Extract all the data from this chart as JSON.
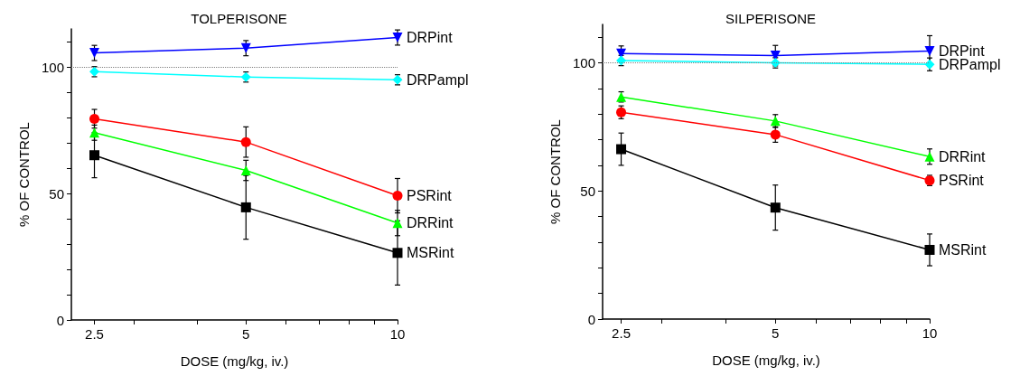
{
  "chart_data": [
    {
      "type": "line",
      "title": "TOLPERISONE",
      "xlabel": "DOSE (mg/kg, iv.)",
      "ylabel": "% OF CONTROL",
      "log": "x",
      "grid": false,
      "legend": false,
      "x": [
        2.5,
        5,
        10
      ],
      "xlim": [
        2.25,
        10
      ],
      "xticks": [
        2.5,
        5,
        10,
        {
          "value": 3,
          "label": null
        },
        {
          "value": 4,
          "label": null
        },
        {
          "value": 6,
          "label": null
        },
        {
          "value": 7,
          "label": null
        },
        {
          "value": 8,
          "label": null
        },
        {
          "value": 9,
          "label": null
        }
      ],
      "ylim": [
        0,
        115
      ],
      "yticks": [
        0,
        50,
        100,
        {
          "value": 10,
          "label": null
        },
        {
          "value": 20,
          "label": null
        },
        {
          "value": 30,
          "label": null
        },
        {
          "value": 40,
          "label": null
        },
        {
          "value": 60,
          "label": null
        },
        {
          "value": 70,
          "label": null
        },
        {
          "value": 80,
          "label": null
        },
        {
          "value": 90,
          "label": null
        },
        {
          "value": 110,
          "label": null
        }
      ],
      "ref_lines": [
        {
          "axis": "y",
          "value": 100,
          "color": "#808080",
          "line_style": "dotted"
        }
      ],
      "series": [
        {
          "name": "DRPint",
          "color": "#0000ff",
          "marker": "triangle-down",
          "values": [
            105.5,
            107.4,
            111.6
          ],
          "errors": [
            3,
            3,
            3
          ]
        },
        {
          "name": "DRPampl",
          "color": "#00ffff",
          "marker": "diamond",
          "values": [
            98.1,
            96.0,
            94.9
          ],
          "errors": [
            2,
            2,
            2
          ]
        },
        {
          "name": "PSRint",
          "color": "#ff0000",
          "marker": "circle",
          "values": [
            79.5,
            70.3,
            49.1
          ],
          "errors": [
            3.7,
            6,
            6.8
          ]
        },
        {
          "name": "DRRint",
          "color": "#00ff00",
          "marker": "triangle",
          "values": [
            74.0,
            59.1,
            38.3
          ],
          "errors": [
            3,
            4,
            5
          ]
        },
        {
          "name": "MSRint",
          "color": "#000000",
          "marker": "square",
          "values": [
            65.1,
            44.5,
            26.5
          ],
          "errors": [
            8.9,
            12.6,
            12.7
          ]
        }
      ]
    },
    {
      "type": "line",
      "title": "SILPERISONE",
      "xlabel": "DOSE (mg/kg, iv.)",
      "ylabel": "% OF CONTROL",
      "log": "x",
      "grid": false,
      "legend": false,
      "x": [
        2.5,
        5,
        10
      ],
      "xlim": [
        2.3,
        10
      ],
      "xticks": [
        2.5,
        5,
        10,
        {
          "value": 3,
          "label": null
        },
        {
          "value": 4,
          "label": null
        },
        {
          "value": 6,
          "label": null
        },
        {
          "value": 7,
          "label": null
        },
        {
          "value": 8,
          "label": null
        },
        {
          "value": 9,
          "label": null
        }
      ],
      "ylim": [
        0,
        115
      ],
      "yticks": [
        0,
        50,
        100,
        {
          "value": 10,
          "label": null
        },
        {
          "value": 20,
          "label": null
        },
        {
          "value": 30,
          "label": null
        },
        {
          "value": 40,
          "label": null
        },
        {
          "value": 60,
          "label": null
        },
        {
          "value": 70,
          "label": null
        },
        {
          "value": 80,
          "label": null
        },
        {
          "value": 90,
          "label": null
        },
        {
          "value": 110,
          "label": null
        }
      ],
      "ref_lines": [
        {
          "axis": "y",
          "value": 100,
          "color": "#808080",
          "line_style": "dotted"
        }
      ],
      "series": [
        {
          "name": "DRPint",
          "color": "#0000ff",
          "marker": "triangle-down",
          "values": [
            103.6,
            102.8,
            104.6
          ],
          "errors": [
            3,
            4,
            6
          ]
        },
        {
          "name": "DRPampl",
          "color": "#00ffff",
          "marker": "diamond",
          "values": [
            100.9,
            100.0,
            99.4
          ],
          "errors": [
            2,
            2,
            2.5
          ]
        },
        {
          "name": "DRRint",
          "color": "#00ff00",
          "marker": "triangle",
          "values": [
            86.7,
            77.3,
            63.4
          ],
          "errors": [
            2,
            2.5,
            3
          ]
        },
        {
          "name": "PSRint",
          "color": "#ff0000",
          "marker": "circle",
          "values": [
            80.7,
            72.0,
            54.1
          ],
          "errors": [
            2.5,
            3,
            2
          ]
        },
        {
          "name": "MSRint",
          "color": "#000000",
          "marker": "square",
          "values": [
            66.3,
            43.5,
            27.0
          ],
          "errors": [
            6.3,
            8.8,
            6.2
          ]
        }
      ]
    }
  ]
}
